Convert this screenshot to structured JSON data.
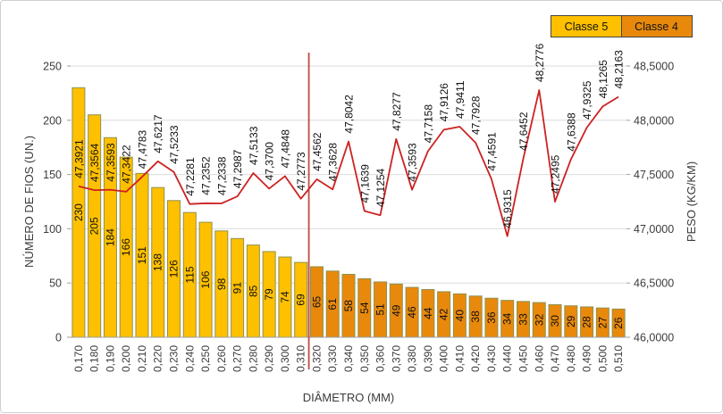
{
  "legend": {
    "items": [
      {
        "label": "Classe 5",
        "color": "#FFC000"
      },
      {
        "label": "Classe 4",
        "color": "#E8890C"
      }
    ],
    "border_color": "#454545"
  },
  "chart_data": {
    "type": "combo (bar + line)",
    "title": "",
    "xlabel": "DIÂMETRO (MM)",
    "categories": [
      "0,170",
      "0,180",
      "0,190",
      "0,200",
      "0,210",
      "0,220",
      "0,230",
      "0,240",
      "0,250",
      "0,260",
      "0,270",
      "0,280",
      "0,290",
      "0,300",
      "0,310",
      "0,320",
      "0,330",
      "0,340",
      "0,350",
      "0,360",
      "0,370",
      "0,380",
      "0,390",
      "0,400",
      "0,410",
      "0,420",
      "0,430",
      "0,440",
      "0,450",
      "0,460",
      "0,470",
      "0,480",
      "0,490",
      "0,500",
      "0,510"
    ],
    "left_axis": {
      "label": "NÚMERO DE FIOS (UN.)",
      "min": 0,
      "max": 250,
      "ticks": [
        "0",
        "50",
        "100",
        "150",
        "200",
        "250"
      ]
    },
    "right_axis": {
      "label": "PESO (KG/KM)",
      "min": 46.0,
      "max": 48.5,
      "ticks": [
        "46,0000",
        "46,5000",
        "47,0000",
        "47,5000",
        "48,0000",
        "48,5000"
      ]
    },
    "series": [
      {
        "name": "Classe 5",
        "type": "bar",
        "axis": "left",
        "color": "#FFC000",
        "border_color": "#8E9150",
        "values": [
          230,
          205,
          184,
          166,
          151,
          138,
          126,
          115,
          106,
          98,
          91,
          85,
          79,
          74,
          69
        ]
      },
      {
        "name": "Classe 4",
        "type": "bar",
        "axis": "left",
        "color": "#E8890C",
        "border_color": "#8E9150",
        "values": [
          65,
          61,
          58,
          54,
          51,
          49,
          46,
          44,
          42,
          40,
          38,
          36,
          34,
          33,
          32,
          30,
          29,
          28,
          27,
          26
        ]
      },
      {
        "name": "Peso",
        "type": "line",
        "axis": "right",
        "color": "#CD2222",
        "value_labels": [
          "47,3921",
          "47,3564",
          "47,3593",
          "47,3422",
          "47,4783",
          "47,6217",
          "47,5233",
          "47,2281",
          "47,2352",
          "47,2338",
          "47,2987",
          "47,5133",
          "47,3700",
          "47,4848",
          "47,2773",
          "47,4562",
          "47,3628",
          "47,8042",
          "47,1639",
          "47,1254",
          "47,8277",
          "47,3593",
          "47,7158",
          "47,9126",
          "47,9411",
          "47,7928",
          "47,4591",
          "46,9315",
          "47,6452",
          "48,2776",
          "47,2495",
          "47,6388",
          "47,9325",
          "48,1265",
          "48,2163"
        ]
      }
    ],
    "separator_line": {
      "color": "#BE4B48",
      "between_categories": [
        "0,310",
        "0,320"
      ]
    },
    "grid": true,
    "grid_color": "#DBDBDB",
    "axis_line_color": "#9E9E9E",
    "tick_text_color": "#3B3B3B",
    "data_label_color": "#101010",
    "legend_position": "top-right"
  }
}
